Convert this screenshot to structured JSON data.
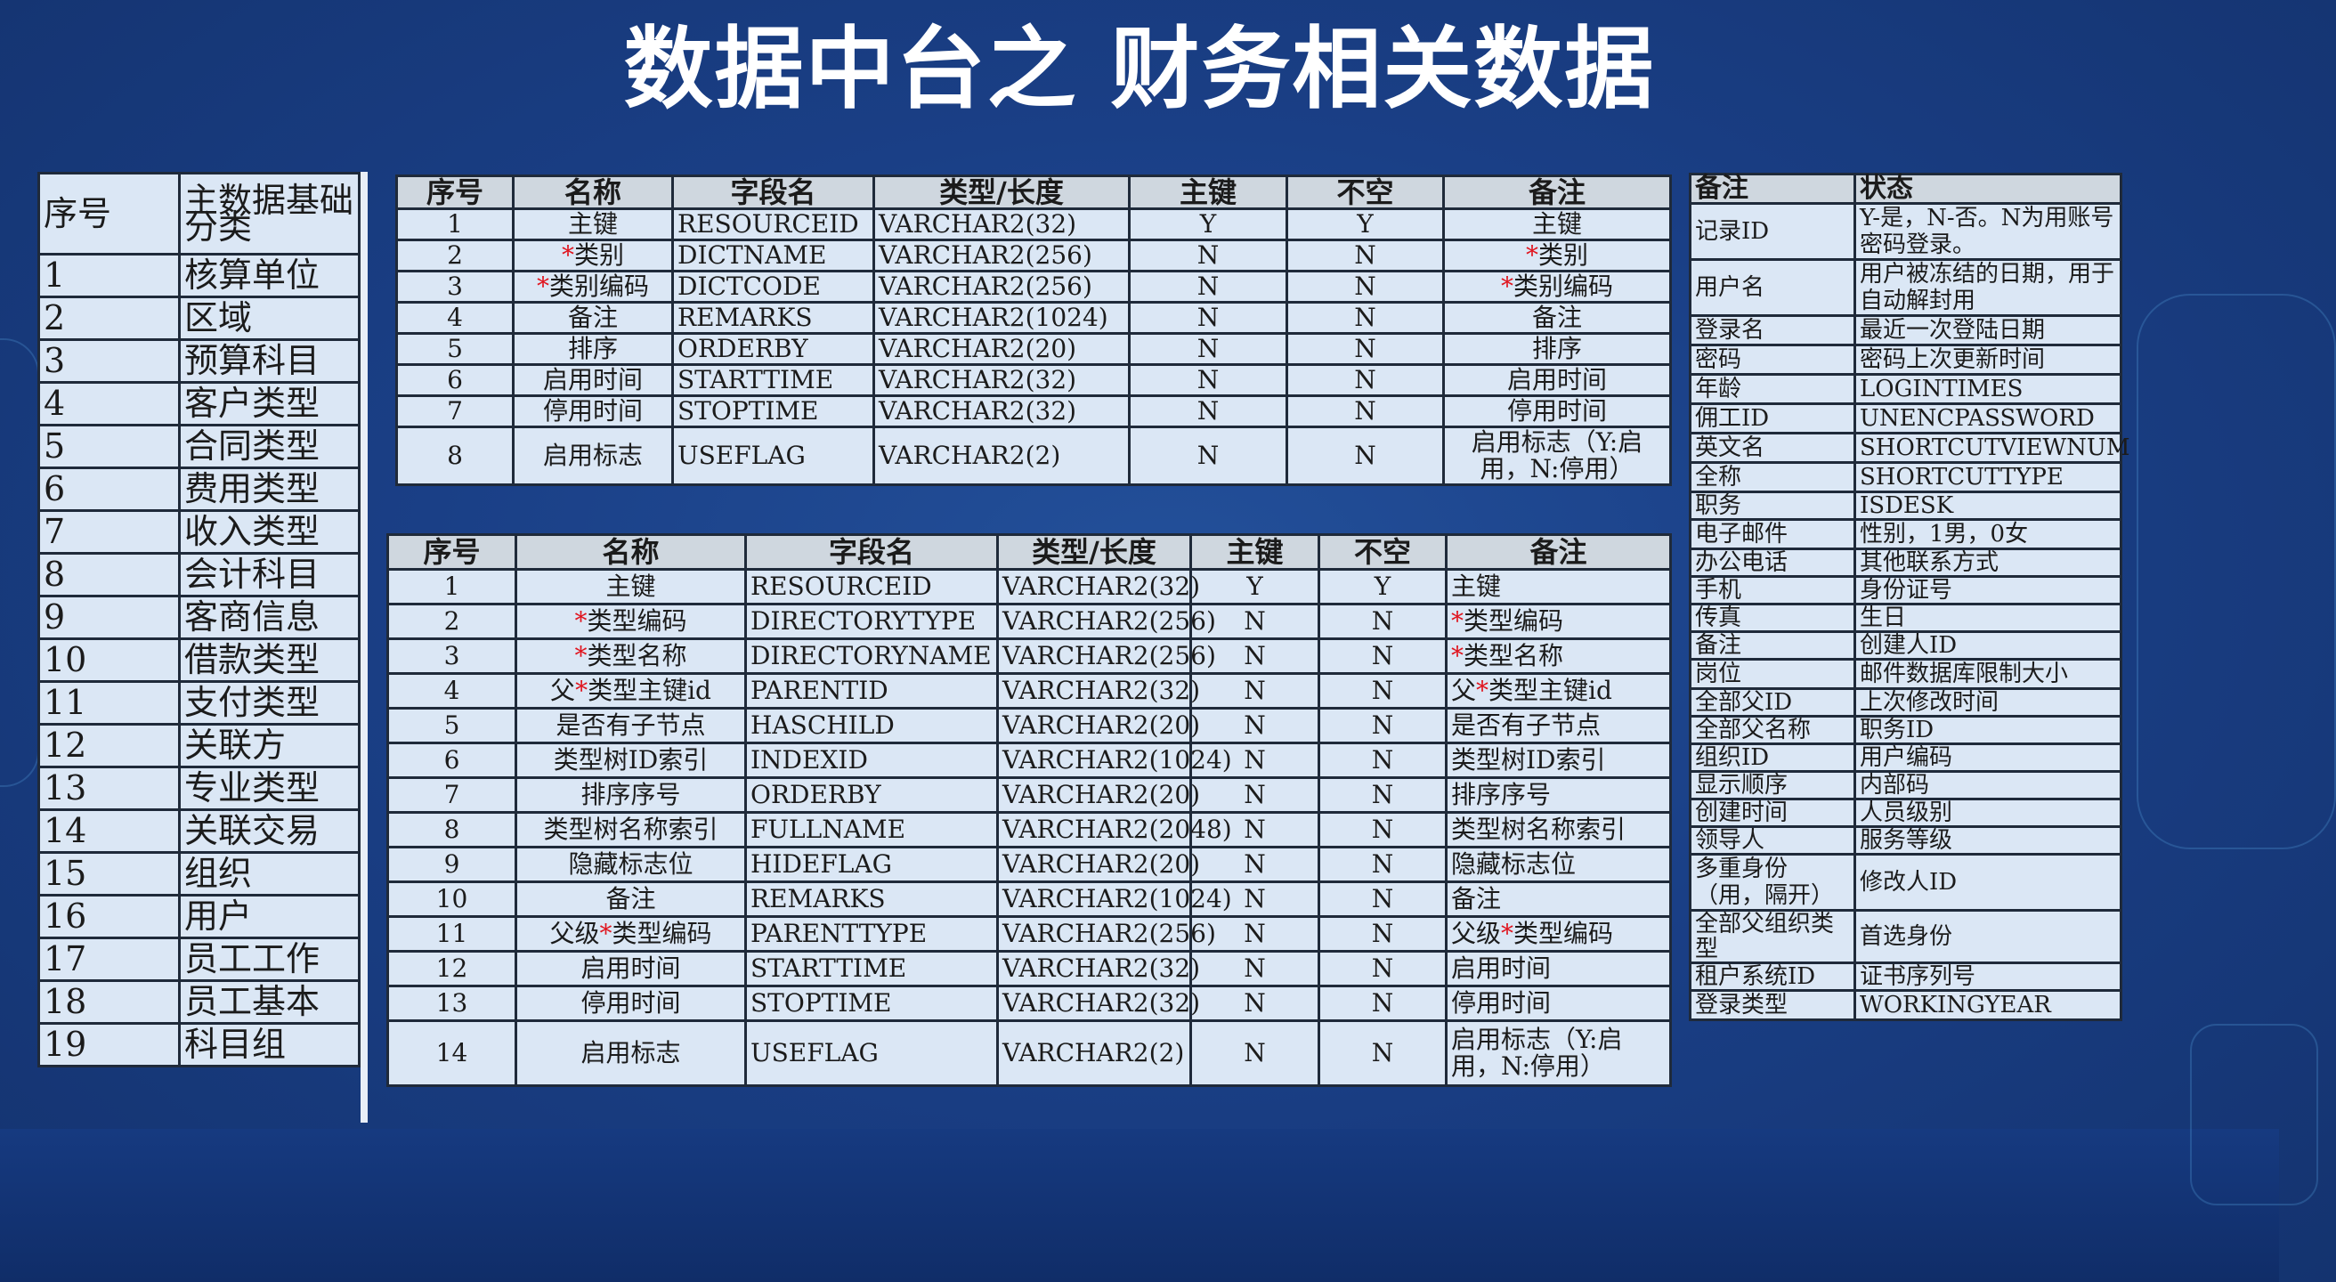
{
  "title": "数据中台之 财务相关数据",
  "colors": {
    "background": "#1a3f86",
    "table_bg": "#dbe7f5",
    "header_bg": "#cfd7df",
    "required_mark": "#e0141e",
    "title": "#ffffff"
  },
  "left_table": {
    "headers": [
      "序号",
      "主数据基础分类"
    ],
    "rows": [
      [
        "1",
        "核算单位"
      ],
      [
        "2",
        "区域"
      ],
      [
        "3",
        "预算科目"
      ],
      [
        "4",
        "客户类型"
      ],
      [
        "5",
        "合同类型"
      ],
      [
        "6",
        "费用类型"
      ],
      [
        "7",
        "收入类型"
      ],
      [
        "8",
        "会计科目"
      ],
      [
        "9",
        "客商信息"
      ],
      [
        "10",
        "借款类型"
      ],
      [
        "11",
        "支付类型"
      ],
      [
        "12",
        "关联方"
      ],
      [
        "13",
        "专业类型"
      ],
      [
        "14",
        "关联交易"
      ],
      [
        "15",
        "组织"
      ],
      [
        "16",
        "用户"
      ],
      [
        "17",
        "员工工作"
      ],
      [
        "18",
        "员工基本"
      ],
      [
        "19",
        "科目组"
      ]
    ]
  },
  "top_table": {
    "headers": [
      "序号",
      "名称",
      "字段名",
      "类型/长度",
      "主键",
      "不空",
      "备注"
    ],
    "rows": [
      {
        "no": "1",
        "name_pre": "",
        "name_red": "",
        "name_post": "主键",
        "field": "RESOURCEID",
        "type": "VARCHAR2(32)",
        "pk": "Y",
        "nn": "Y",
        "rm_pre": "",
        "rm_red": "",
        "rm_post": "主键"
      },
      {
        "no": "2",
        "name_pre": "",
        "name_red": "*",
        "name_post": "类别",
        "field": "DICTNAME",
        "type": "VARCHAR2(256)",
        "pk": "N",
        "nn": "N",
        "rm_pre": "",
        "rm_red": "*",
        "rm_post": "类别"
      },
      {
        "no": "3",
        "name_pre": "",
        "name_red": "*",
        "name_post": "类别编码",
        "field": "DICTCODE",
        "type": "VARCHAR2(256)",
        "pk": "N",
        "nn": "N",
        "rm_pre": "",
        "rm_red": "*",
        "rm_post": "类别编码"
      },
      {
        "no": "4",
        "name_pre": "",
        "name_red": "",
        "name_post": "备注",
        "field": "REMARKS",
        "type": "VARCHAR2(1024)",
        "pk": "N",
        "nn": "N",
        "rm_pre": "",
        "rm_red": "",
        "rm_post": "备注"
      },
      {
        "no": "5",
        "name_pre": "",
        "name_red": "",
        "name_post": "排序",
        "field": "ORDERBY",
        "type": "VARCHAR2(20)",
        "pk": "N",
        "nn": "N",
        "rm_pre": "",
        "rm_red": "",
        "rm_post": "排序"
      },
      {
        "no": "6",
        "name_pre": "",
        "name_red": "",
        "name_post": "启用时间",
        "field": "STARTTIME",
        "type": "VARCHAR2(32)",
        "pk": "N",
        "nn": "N",
        "rm_pre": "",
        "rm_red": "",
        "rm_post": "启用时间"
      },
      {
        "no": "7",
        "name_pre": "",
        "name_red": "",
        "name_post": "停用时间",
        "field": "STOPTIME",
        "type": "VARCHAR2(32)",
        "pk": "N",
        "nn": "N",
        "rm_pre": "",
        "rm_red": "",
        "rm_post": "停用时间"
      },
      {
        "no": "8",
        "name_pre": "",
        "name_red": "",
        "name_post": "启用标志",
        "field": "USEFLAG",
        "type": "VARCHAR2(2)",
        "pk": "N",
        "nn": "N",
        "rm_pre": "",
        "rm_red": "",
        "rm_post": "启用标志（Y:启用，N:停用）"
      }
    ]
  },
  "bottom_table": {
    "headers": [
      "序号",
      "名称",
      "字段名",
      "类型/长度",
      "主键",
      "不空",
      "备注"
    ],
    "rows": [
      {
        "no": "1",
        "name_pre": "",
        "name_red": "",
        "name_post": "主键",
        "field": "RESOURCEID",
        "type": "VARCHAR2(32)",
        "pk": "Y",
        "nn": "Y",
        "rm_pre": "",
        "rm_red": "",
        "rm_post": "主键"
      },
      {
        "no": "2",
        "name_pre": "",
        "name_red": "*",
        "name_post": "类型编码",
        "field": "DIRECTORYTYPE",
        "type": "VARCHAR2(256)",
        "pk": "N",
        "nn": "N",
        "rm_pre": "",
        "rm_red": "*",
        "rm_post": "类型编码"
      },
      {
        "no": "3",
        "name_pre": "",
        "name_red": "*",
        "name_post": "类型名称",
        "field": "DIRECTORYNAME",
        "type": "VARCHAR2(256)",
        "pk": "N",
        "nn": "N",
        "rm_pre": "",
        "rm_red": "*",
        "rm_post": "类型名称"
      },
      {
        "no": "4",
        "name_pre": "父",
        "name_red": "*",
        "name_post": "类型主键id",
        "field": "PARENTID",
        "type": "VARCHAR2(32)",
        "pk": "N",
        "nn": "N",
        "rm_pre": "父",
        "rm_red": "*",
        "rm_post": "类型主键id"
      },
      {
        "no": "5",
        "name_pre": "",
        "name_red": "",
        "name_post": "是否有子节点",
        "field": "HASCHILD",
        "type": "VARCHAR2(20)",
        "pk": "N",
        "nn": "N",
        "rm_pre": "",
        "rm_red": "",
        "rm_post": "是否有子节点"
      },
      {
        "no": "6",
        "name_pre": "",
        "name_red": "",
        "name_post": "类型树ID索引",
        "field": "INDEXID",
        "type": "VARCHAR2(1024)",
        "pk": "N",
        "nn": "N",
        "rm_pre": "",
        "rm_red": "",
        "rm_post": "类型树ID索引"
      },
      {
        "no": "7",
        "name_pre": "",
        "name_red": "",
        "name_post": "排序序号",
        "field": "ORDERBY",
        "type": "VARCHAR2(20)",
        "pk": "N",
        "nn": "N",
        "rm_pre": "",
        "rm_red": "",
        "rm_post": "排序序号"
      },
      {
        "no": "8",
        "name_pre": "",
        "name_red": "",
        "name_post": "类型树名称索引",
        "field": "FULLNAME",
        "type": "VARCHAR2(2048)",
        "pk": "N",
        "nn": "N",
        "rm_pre": "",
        "rm_red": "",
        "rm_post": "类型树名称索引"
      },
      {
        "no": "9",
        "name_pre": "",
        "name_red": "",
        "name_post": "隐藏标志位",
        "field": "HIDEFLAG",
        "type": "VARCHAR2(20)",
        "pk": "N",
        "nn": "N",
        "rm_pre": "",
        "rm_red": "",
        "rm_post": "隐藏标志位"
      },
      {
        "no": "10",
        "name_pre": "",
        "name_red": "",
        "name_post": "备注",
        "field": "REMARKS",
        "type": "VARCHAR2(1024)",
        "pk": "N",
        "nn": "N",
        "rm_pre": "",
        "rm_red": "",
        "rm_post": "备注"
      },
      {
        "no": "11",
        "name_pre": "父级",
        "name_red": "*",
        "name_post": "类型编码",
        "field": "PARENTTYPE",
        "type": "VARCHAR2(256)",
        "pk": "N",
        "nn": "N",
        "rm_pre": "父级",
        "rm_red": "*",
        "rm_post": "类型编码"
      },
      {
        "no": "12",
        "name_pre": "",
        "name_red": "",
        "name_post": "启用时间",
        "field": "STARTTIME",
        "type": "VARCHAR2(32)",
        "pk": "N",
        "nn": "N",
        "rm_pre": "",
        "rm_red": "",
        "rm_post": "启用时间"
      },
      {
        "no": "13",
        "name_pre": "",
        "name_red": "",
        "name_post": "停用时间",
        "field": "STOPTIME",
        "type": "VARCHAR2(32)",
        "pk": "N",
        "nn": "N",
        "rm_pre": "",
        "rm_red": "",
        "rm_post": "停用时间"
      },
      {
        "no": "14",
        "name_pre": "",
        "name_red": "",
        "name_post": "启用标志",
        "field": "USEFLAG",
        "type": "VARCHAR2(2)",
        "pk": "N",
        "nn": "N",
        "rm_pre": "",
        "rm_red": "",
        "rm_post": "启用标志（Y:启用，N:停用）"
      }
    ]
  },
  "right_table": {
    "headers": [
      "备注",
      "状态"
    ],
    "rows": [
      [
        "记录ID",
        "Y-是，N-否。N为用账号密码登录。"
      ],
      [
        "用户名",
        "用户被冻结的日期，用于自动解封用"
      ],
      [
        "登录名",
        "最近一次登陆日期"
      ],
      [
        "密码",
        "密码上次更新时间"
      ],
      [
        "年龄",
        "LOGINTIMES"
      ],
      [
        "佣工ID",
        "UNENCPASSWORD"
      ],
      [
        "英文名",
        "SHORTCUTVIEWNUM"
      ],
      [
        "全称",
        "SHORTCUTTYPE"
      ],
      [
        "职务",
        "ISDESK"
      ],
      [
        "电子邮件",
        "性别，1男，0女"
      ],
      [
        "办公电话",
        "其他联系方式"
      ],
      [
        "手机",
        "身份证号"
      ],
      [
        "传真",
        "生日"
      ],
      [
        "备注",
        "创建人ID"
      ],
      [
        "岗位",
        "邮件数据库限制大小"
      ],
      [
        "全部父ID",
        "上次修改时间"
      ],
      [
        "全部父名称",
        "职务ID"
      ],
      [
        "组织ID",
        "用户编码"
      ],
      [
        "显示顺序",
        "内部码"
      ],
      [
        "创建时间",
        "人员级别"
      ],
      [
        "领导人",
        "服务等级"
      ],
      [
        "多重身份（用，隔开）",
        "修改人ID"
      ],
      [
        "全部父组织类型",
        "首选身份"
      ],
      [
        "租户系统ID",
        "证书序列号"
      ],
      [
        "登录类型",
        "WORKINGYEAR"
      ]
    ]
  }
}
